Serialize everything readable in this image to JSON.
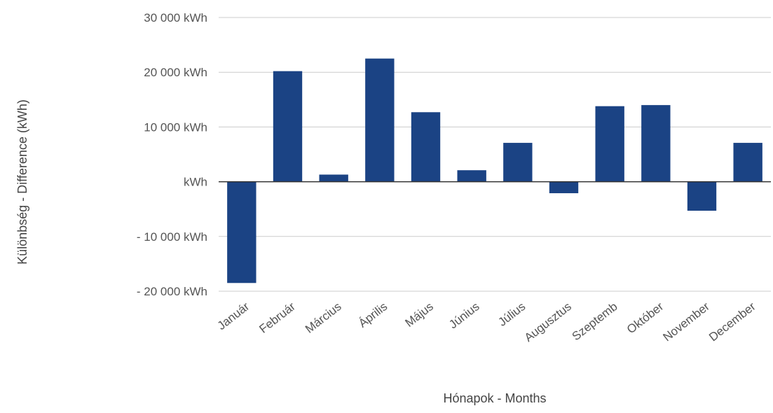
{
  "chart_data": {
    "type": "bar",
    "xlabel": "Hónapok - Months",
    "ylabel": "Különbség - Difference (kWh)",
    "categories": [
      "Január",
      "Február",
      "Március",
      "Április",
      "Május",
      "Június",
      "Július",
      "Augusztus",
      "Szeptemb",
      "Október",
      "November",
      "December"
    ],
    "values": [
      -18500,
      20200,
      1300,
      22500,
      12700,
      2100,
      7100,
      -2100,
      13800,
      14000,
      -5300,
      7100
    ],
    "ylim": [
      -20000,
      30000
    ],
    "yticks": [
      {
        "value": 30000,
        "label": "30 000  kWh"
      },
      {
        "value": 20000,
        "label": "20 000  kWh"
      },
      {
        "value": 10000,
        "label": "10 000  kWh"
      },
      {
        "value": 0,
        "label": "kWh"
      },
      {
        "value": -10000,
        "label": "- 10 000  kWh"
      },
      {
        "value": -20000,
        "label": "- 20 000  kWh"
      }
    ],
    "grid": true,
    "colors": {
      "bar": "#1b4384",
      "grid": "#cccccc",
      "zero_line": "#333333"
    }
  }
}
